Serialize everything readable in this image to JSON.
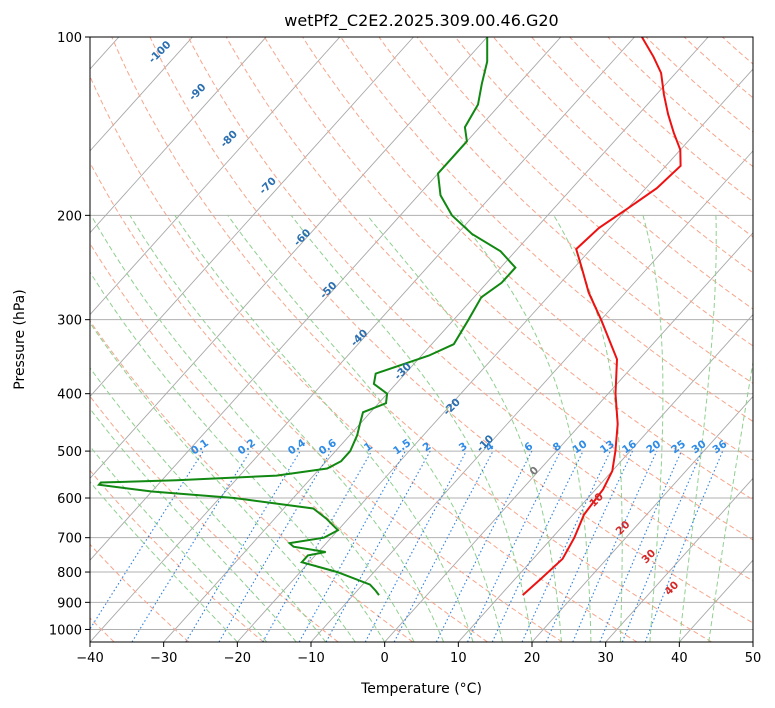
{
  "chart_data": {
    "type": "line",
    "subtype": "skew-t log-p diagram",
    "title": "wetPf2_C2E2.2025.309.00.46.G20",
    "xlabel": "Temperature (°C)",
    "ylabel": "Pressure (hPa)",
    "xlim": [
      -40,
      50
    ],
    "plim": [
      1050,
      100
    ],
    "xticks": [
      -40,
      -30,
      -20,
      -10,
      0,
      10,
      20,
      30,
      40,
      50
    ],
    "xtick_labels": [
      "−40",
      "−30",
      "−20",
      "−10",
      "0",
      "10",
      "20",
      "30",
      "40",
      "50"
    ],
    "yticks": [
      100,
      200,
      300,
      400,
      500,
      600,
      700,
      800,
      900,
      1000
    ],
    "ytick_labels": [
      "100",
      "200",
      "300",
      "400",
      "500",
      "600",
      "700",
      "800",
      "900",
      "1000"
    ],
    "colors": {
      "temperature": "#ee1111",
      "dewpoint": "#118811",
      "isotherm": "#aaaaaa",
      "dry_adiabat": "#f7a58c",
      "moist_adiabat": "#8fcf8f",
      "mixing_ratio": "#2f7fdc",
      "wet_bulb_label": "#d62728",
      "temp_label": "#2b6fb0"
    },
    "series": [
      {
        "name": "temperature",
        "points": [
          {
            "p": 875,
            "t": 13.0
          },
          {
            "p": 820,
            "t": 13.5
          },
          {
            "p": 760,
            "t": 14.0
          },
          {
            "p": 700,
            "t": 13.0
          },
          {
            "p": 640,
            "t": 11.5
          },
          {
            "p": 580,
            "t": 11.0
          },
          {
            "p": 540,
            "t": 10.0
          },
          {
            "p": 500,
            "t": 8.0
          },
          {
            "p": 450,
            "t": 5.0
          },
          {
            "p": 400,
            "t": 1.0
          },
          {
            "p": 350,
            "t": -3.0
          },
          {
            "p": 300,
            "t": -10.0
          },
          {
            "p": 270,
            "t": -15.0
          },
          {
            "p": 245,
            "t": -19.0
          },
          {
            "p": 228,
            "t": -22.0
          },
          {
            "p": 210,
            "t": -21.5
          },
          {
            "p": 195,
            "t": -20.0
          },
          {
            "p": 180,
            "t": -18.5
          },
          {
            "p": 165,
            "t": -18.0
          },
          {
            "p": 155,
            "t": -20.0
          },
          {
            "p": 145,
            "t": -23.0
          },
          {
            "p": 135,
            "t": -26.0
          },
          {
            "p": 125,
            "t": -29.0
          },
          {
            "p": 115,
            "t": -32.0
          },
          {
            "p": 108,
            "t": -35.0
          },
          {
            "p": 100,
            "t": -39.0
          }
        ]
      },
      {
        "name": "dewpoint",
        "points": [
          {
            "p": 875,
            "t": -6.5
          },
          {
            "p": 860,
            "t": -7.5
          },
          {
            "p": 840,
            "t": -9.0
          },
          {
            "p": 800,
            "t": -15.0
          },
          {
            "p": 770,
            "t": -21.0
          },
          {
            "p": 750,
            "t": -21.0
          },
          {
            "p": 740,
            "t": -19.0
          },
          {
            "p": 725,
            "t": -24.0
          },
          {
            "p": 715,
            "t": -25.0
          },
          {
            "p": 700,
            "t": -21.0
          },
          {
            "p": 680,
            "t": -20.0
          },
          {
            "p": 650,
            "t": -23.0
          },
          {
            "p": 625,
            "t": -26.0
          },
          {
            "p": 600,
            "t": -38.0
          },
          {
            "p": 585,
            "t": -50.0
          },
          {
            "p": 570,
            "t": -58.0
          },
          {
            "p": 565,
            "t": -58.0
          },
          {
            "p": 560,
            "t": -48.0
          },
          {
            "p": 550,
            "t": -35.0
          },
          {
            "p": 535,
            "t": -29.0
          },
          {
            "p": 520,
            "t": -28.0
          },
          {
            "p": 500,
            "t": -28.0
          },
          {
            "p": 470,
            "t": -29.0
          },
          {
            "p": 450,
            "t": -30.0
          },
          {
            "p": 430,
            "t": -31.0
          },
          {
            "p": 415,
            "t": -29.0
          },
          {
            "p": 400,
            "t": -30.0
          },
          {
            "p": 385,
            "t": -33.0
          },
          {
            "p": 370,
            "t": -34.0
          },
          {
            "p": 345,
            "t": -29.0
          },
          {
            "p": 330,
            "t": -27.0
          },
          {
            "p": 300,
            "t": -28.0
          },
          {
            "p": 275,
            "t": -29.0
          },
          {
            "p": 260,
            "t": -28.0
          },
          {
            "p": 245,
            "t": -28.0
          },
          {
            "p": 230,
            "t": -32.0
          },
          {
            "p": 215,
            "t": -38.0
          },
          {
            "p": 200,
            "t": -43.0
          },
          {
            "p": 185,
            "t": -47.0
          },
          {
            "p": 170,
            "t": -50.0
          },
          {
            "p": 160,
            "t": -50.0
          },
          {
            "p": 150,
            "t": -50.0
          },
          {
            "p": 142,
            "t": -52.0
          },
          {
            "p": 130,
            "t": -53.0
          },
          {
            "p": 120,
            "t": -55.0
          },
          {
            "p": 110,
            "t": -57.0
          },
          {
            "p": 100,
            "t": -60.0
          }
        ]
      }
    ],
    "temp_isotherm_labels": [
      {
        "p": 107,
        "t": -102,
        "text": "-100"
      },
      {
        "p": 125,
        "t": -92,
        "text": "-90"
      },
      {
        "p": 150,
        "t": -82,
        "text": "-80"
      },
      {
        "p": 180,
        "t": -71,
        "text": "-70"
      },
      {
        "p": 220,
        "t": -60,
        "text": "-60"
      },
      {
        "p": 270,
        "t": -50,
        "text": "-50"
      },
      {
        "p": 325,
        "t": -40,
        "text": "-40"
      },
      {
        "p": 370,
        "t": -30,
        "text": "-30"
      },
      {
        "p": 425,
        "t": -19,
        "text": "-20"
      },
      {
        "p": 490,
        "t": -10,
        "text": "-10"
      },
      {
        "p": 545,
        "t": 0,
        "text": "0"
      }
    ],
    "wet_bulb_labels": [
      {
        "p": 610,
        "t": 12,
        "text": "10"
      },
      {
        "p": 680,
        "t": 19,
        "text": "20"
      },
      {
        "p": 760,
        "t": 26,
        "text": "30"
      },
      {
        "p": 860,
        "t": 33,
        "text": "40"
      }
    ],
    "mixing_ratio_values": [
      0.1,
      0.2,
      0.4,
      0.6,
      1,
      1.5,
      2,
      3,
      4,
      6,
      8,
      10,
      13,
      16,
      20,
      25,
      30,
      36
    ],
    "mixing_ratio_labels": [
      "0.1",
      "0.2",
      "0.4",
      "0.6",
      "1",
      "1.5",
      "2",
      "3",
      "4",
      "6",
      "8",
      "10",
      "13",
      "16",
      "20",
      "25",
      "30",
      "36"
    ]
  }
}
